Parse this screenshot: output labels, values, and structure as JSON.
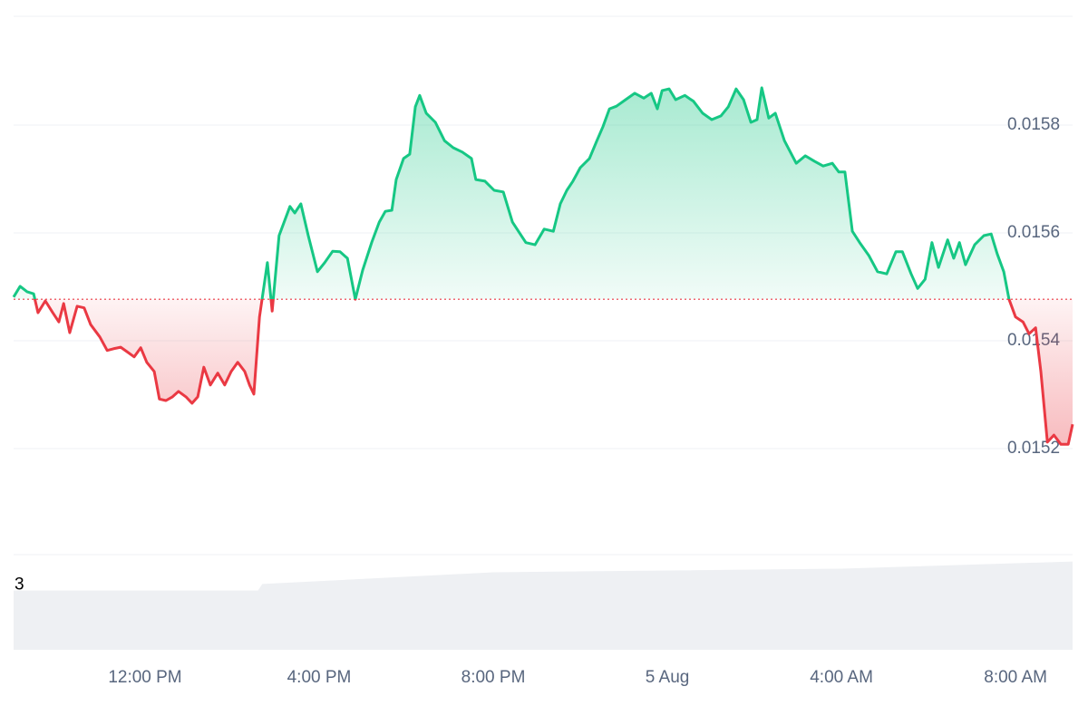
{
  "chart_data": [
    {
      "type": "line",
      "x": [
        8.98,
        9.13,
        9.29,
        9.44,
        9.54,
        9.71,
        9.88,
        10.02,
        10.13,
        10.27,
        10.44,
        10.6,
        10.75,
        10.96,
        11.13,
        11.27,
        11.44,
        11.58,
        11.75,
        11.9,
        12.04,
        12.21,
        12.33,
        12.48,
        12.63,
        12.77,
        12.94,
        13.08,
        13.21,
        13.35,
        13.5,
        13.67,
        13.83,
        13.98,
        14.13,
        14.29,
        14.4,
        14.5,
        14.63,
        14.81,
        14.92,
        15.08,
        15.33,
        15.44,
        15.58,
        15.75,
        15.96,
        16.13,
        16.31,
        16.48,
        16.65,
        16.83,
        17.0,
        17.21,
        17.38,
        17.52,
        17.67,
        17.77,
        17.94,
        18.08,
        18.21,
        18.31,
        18.46,
        18.67,
        18.88,
        19.08,
        19.29,
        19.5,
        19.6,
        19.81,
        20.02,
        20.23,
        20.44,
        20.75,
        20.96,
        21.17,
        21.38,
        21.54,
        21.69,
        21.83,
        22.0,
        22.21,
        22.38,
        22.52,
        22.67,
        22.83,
        23.04,
        23.25,
        23.46,
        23.63,
        23.77,
        23.88,
        24.04,
        24.19,
        24.4,
        24.6,
        24.81,
        25.02,
        25.23,
        25.4,
        25.58,
        25.75,
        25.92,
        26.06,
        26.17,
        26.33,
        26.48,
        26.69,
        26.96,
        27.17,
        27.38,
        27.58,
        27.79,
        27.94,
        28.08,
        28.25,
        28.42,
        28.63,
        28.83,
        29.04,
        29.25,
        29.4,
        29.6,
        29.75,
        29.92,
        30.08,
        30.23,
        30.44,
        30.58,
        30.71,
        30.85,
        31.06,
        31.27,
        31.44,
        31.58,
        31.73,
        31.85,
        32.0,
        32.17,
        32.31,
        32.46,
        32.58,
        32.73,
        32.88,
        33.04,
        33.21,
        33.31
      ],
      "values": [
        0.015481,
        0.015501,
        0.015491,
        0.015487,
        0.015452,
        0.015474,
        0.015452,
        0.015435,
        0.015469,
        0.015415,
        0.015464,
        0.015461,
        0.01543,
        0.015407,
        0.015382,
        0.015385,
        0.015388,
        0.01538,
        0.01537,
        0.015387,
        0.01536,
        0.015343,
        0.015292,
        0.015289,
        0.015296,
        0.015306,
        0.015296,
        0.015284,
        0.015296,
        0.015351,
        0.015318,
        0.01534,
        0.015318,
        0.015343,
        0.01536,
        0.015343,
        0.015318,
        0.015301,
        0.015444,
        0.015545,
        0.015455,
        0.015595,
        0.015649,
        0.015637,
        0.015654,
        0.015595,
        0.015528,
        0.015545,
        0.015566,
        0.015565,
        0.015553,
        0.015477,
        0.015531,
        0.015583,
        0.01562,
        0.01564,
        0.015642,
        0.015699,
        0.015738,
        0.015746,
        0.015834,
        0.015855,
        0.015822,
        0.015805,
        0.015771,
        0.015758,
        0.01575,
        0.015738,
        0.015699,
        0.015696,
        0.015679,
        0.015676,
        0.01562,
        0.015582,
        0.015578,
        0.015607,
        0.015603,
        0.015654,
        0.015679,
        0.015696,
        0.015721,
        0.015738,
        0.015771,
        0.015797,
        0.01583,
        0.015835,
        0.015847,
        0.015859,
        0.01585,
        0.015859,
        0.01583,
        0.015864,
        0.015867,
        0.015847,
        0.015855,
        0.015844,
        0.015822,
        0.01581,
        0.015817,
        0.015834,
        0.015867,
        0.015847,
        0.015805,
        0.01581,
        0.015869,
        0.015813,
        0.015822,
        0.015771,
        0.015729,
        0.015743,
        0.015733,
        0.015724,
        0.015729,
        0.015713,
        0.015713,
        0.015603,
        0.015582,
        0.015558,
        0.015528,
        0.015524,
        0.015565,
        0.015565,
        0.015524,
        0.015497,
        0.015514,
        0.015582,
        0.015536,
        0.015587,
        0.015553,
        0.015582,
        0.015541,
        0.015578,
        0.015595,
        0.015598,
        0.015561,
        0.015528,
        0.015477,
        0.015444,
        0.015435,
        0.015413,
        0.015424,
        0.015343,
        0.015212,
        0.015225,
        0.015208,
        0.015208,
        0.015245
      ],
      "baseline": 0.015477,
      "up_color": "#16c784",
      "down_color": "#ea3943",
      "xlim": [
        8.98,
        33.31
      ],
      "xticks": [
        {
          "value": 12,
          "label": "12:00 PM"
        },
        {
          "value": 16,
          "label": "4:00 PM"
        },
        {
          "value": 20,
          "label": "8:00 PM"
        },
        {
          "value": 24,
          "label": "5 Aug"
        },
        {
          "value": 28,
          "label": "4:00 AM"
        },
        {
          "value": 32,
          "label": "8:00 AM"
        }
      ],
      "ylim": [
        0.015,
        0.016
      ],
      "yticks": [
        0.0152,
        0.0154,
        0.0156,
        0.0158
      ],
      "grid": true
    },
    {
      "type": "area",
      "x": [
        8.98,
        14.6,
        14.7,
        20,
        28,
        33.31
      ],
      "values": [
        2.72,
        2.72,
        3.02,
        3.56,
        3.73,
        4.06
      ],
      "color": "#eef0f3",
      "xlim": [
        8.98,
        33.31
      ],
      "ylim": [
        0,
        4.4
      ],
      "yticks": [
        3
      ]
    }
  ]
}
